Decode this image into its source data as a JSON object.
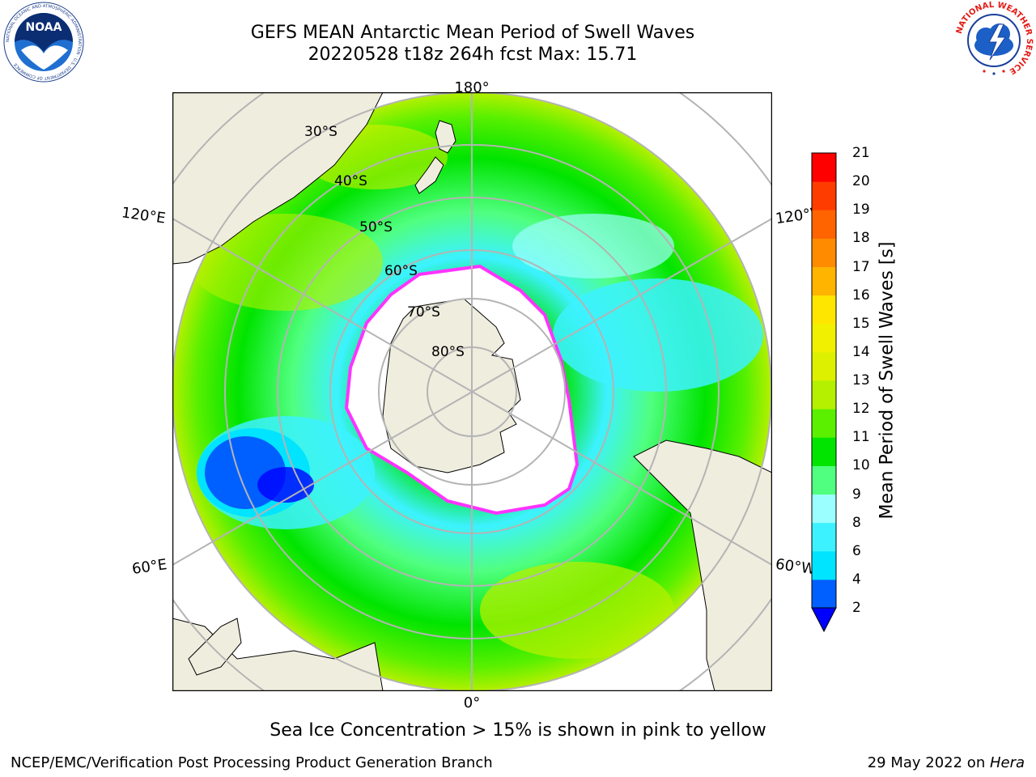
{
  "header": {
    "title_line1": "GEFS MEAN Antarctic Mean Period of Swell Waves",
    "title_line2": "20220528 t18z 264h fcst   Max: 15.71"
  },
  "logos": {
    "noaa_text": "NOAA",
    "noaa_ring_text": "NATIONAL OCEANIC AND ATMOSPHERIC ADMINISTRATION · U.S. DEPARTMENT OF COMMERCE",
    "nws_ring_text": "NATIONAL WEATHER SERVICE"
  },
  "map": {
    "projection": "south-polar-stereographic",
    "longitude_labels": {
      "top": "180°",
      "bottom": "0°",
      "left_upper": "120°E",
      "left_lower": "60°E",
      "right_upper": "120°W",
      "right_lower": "60°W"
    },
    "latitude_labels": [
      "30°S",
      "40°S",
      "50°S",
      "60°S",
      "70°S",
      "80°S"
    ],
    "colors": {
      "land": "#efedde",
      "sea_ice": "#ffffff",
      "graticule": "#b4b4b4",
      "ice_edge": "#ff33ff"
    }
  },
  "colorbar": {
    "label": "Mean Period of Swell Waves [s]",
    "ticks": [
      "2",
      "4",
      "6",
      "8",
      "9",
      "10",
      "11",
      "12",
      "13",
      "14",
      "15",
      "16",
      "17",
      "18",
      "19",
      "20",
      "21"
    ],
    "colors": [
      "#0060ff",
      "#00e4ff",
      "#3cf2ff",
      "#9cffff",
      "#50ff80",
      "#00e400",
      "#5af000",
      "#b4f000",
      "#dcf000",
      "#f0f000",
      "#ffe600",
      "#ffb400",
      "#ff8c00",
      "#ff6400",
      "#ff3c00",
      "#ff0000"
    ],
    "extend_color": "#0000ff"
  },
  "caption": "Sea Ice Concentration > 15% is shown in pink to yellow",
  "footer": {
    "left": "NCEP/EMC/Verification Post Processing Product Generation Branch",
    "right_prefix": "29 May 2022 on ",
    "right_host": "Hera"
  }
}
